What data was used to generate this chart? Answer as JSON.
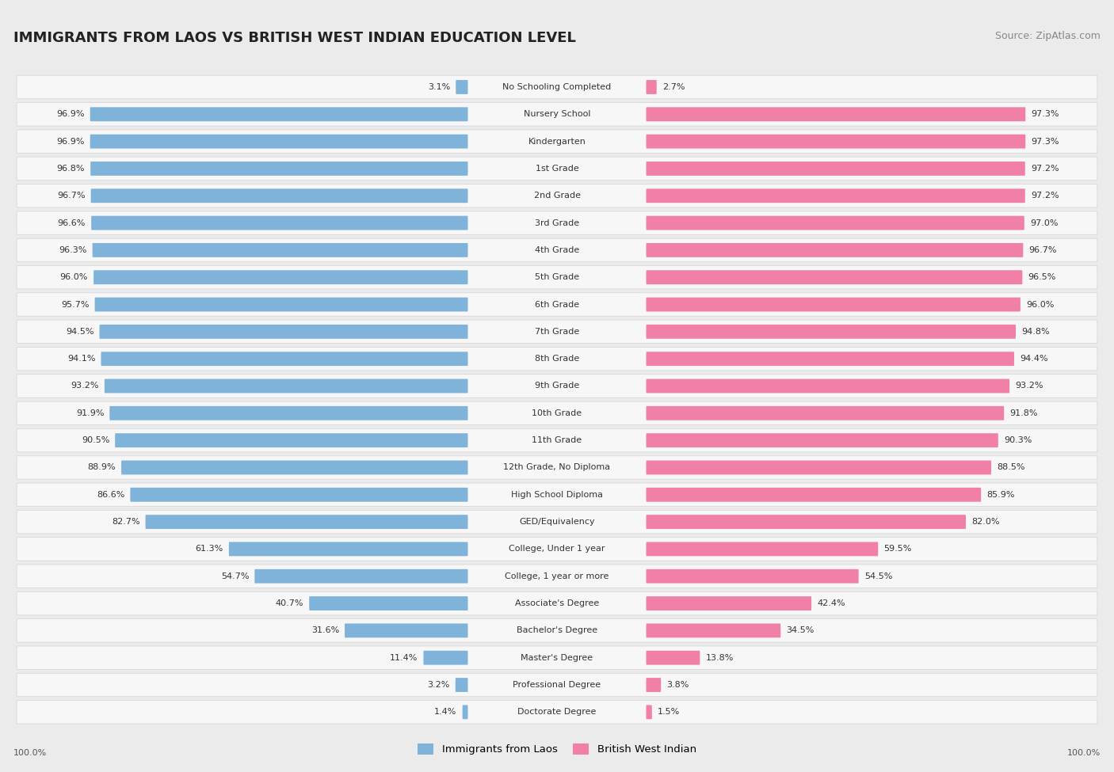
{
  "title": "IMMIGRANTS FROM LAOS VS BRITISH WEST INDIAN EDUCATION LEVEL",
  "source": "Source: ZipAtlas.com",
  "categories": [
    "No Schooling Completed",
    "Nursery School",
    "Kindergarten",
    "1st Grade",
    "2nd Grade",
    "3rd Grade",
    "4th Grade",
    "5th Grade",
    "6th Grade",
    "7th Grade",
    "8th Grade",
    "9th Grade",
    "10th Grade",
    "11th Grade",
    "12th Grade, No Diploma",
    "High School Diploma",
    "GED/Equivalency",
    "College, Under 1 year",
    "College, 1 year or more",
    "Associate's Degree",
    "Bachelor's Degree",
    "Master's Degree",
    "Professional Degree",
    "Doctorate Degree"
  ],
  "laos_values": [
    3.1,
    96.9,
    96.9,
    96.8,
    96.7,
    96.6,
    96.3,
    96.0,
    95.7,
    94.5,
    94.1,
    93.2,
    91.9,
    90.5,
    88.9,
    86.6,
    82.7,
    61.3,
    54.7,
    40.7,
    31.6,
    11.4,
    3.2,
    1.4
  ],
  "bwi_values": [
    2.7,
    97.3,
    97.3,
    97.2,
    97.2,
    97.0,
    96.7,
    96.5,
    96.0,
    94.8,
    94.4,
    93.2,
    91.8,
    90.3,
    88.5,
    85.9,
    82.0,
    59.5,
    54.5,
    42.4,
    34.5,
    13.8,
    3.8,
    1.5
  ],
  "laos_color": "#7fb3d9",
  "bwi_color": "#f080a8",
  "background_color": "#ebebeb",
  "row_bg_color": "#f7f7f7",
  "legend_laos": "Immigrants from Laos",
  "legend_bwi": "British West Indian",
  "axis_label_left": "100.0%",
  "axis_label_right": "100.0%",
  "title_fontsize": 13,
  "source_fontsize": 9,
  "label_fontsize": 8,
  "value_fontsize": 8
}
